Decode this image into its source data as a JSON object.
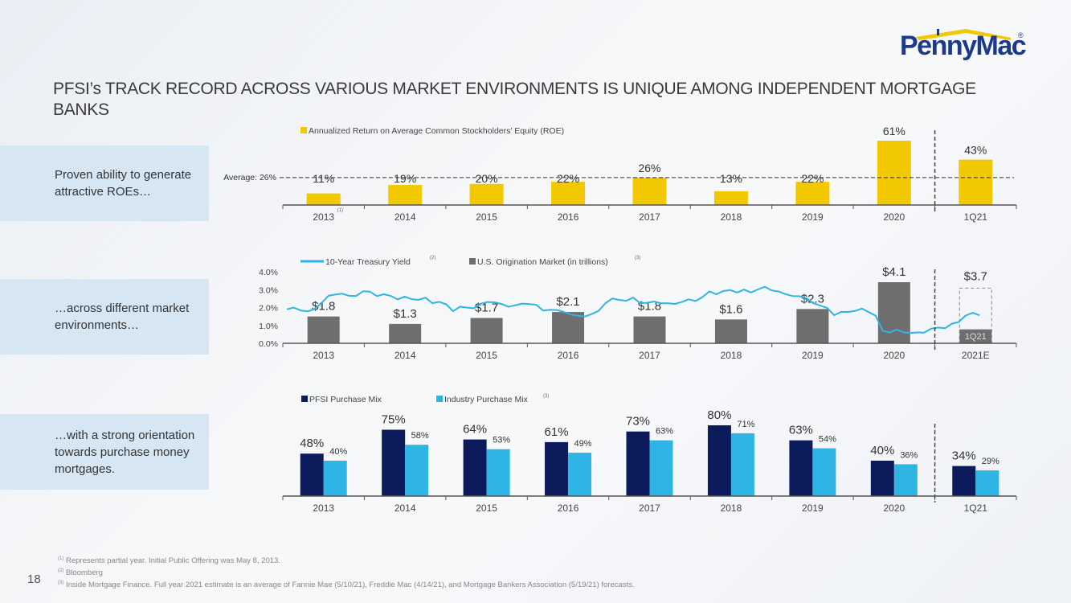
{
  "brand": {
    "name": "PennyMac",
    "registered": "®",
    "primary": "#1d3a8a",
    "accent": "#f2c800"
  },
  "title": "PFSI’s TRACK RECORD ACROSS VARIOUS MARKET ENVIRONMENTS IS UNIQUE AMONG INDEPENDENT MORTGAGE BANKS",
  "panels": [
    "Proven ability to generate attractive ROEs…",
    "…across different market environments…",
    "…with a strong orientation towards purchase money mortgages."
  ],
  "colors": {
    "roe": "#f2c800",
    "origination": "#6e6e6e",
    "treasury": "#2fb4e6",
    "pfsi": "#0b1b5c",
    "industry": "#2fb4e6",
    "axis": "#555555",
    "text": "#333333"
  },
  "chart_data": [
    {
      "type": "bar",
      "name": "roe",
      "legend": "Annualized Return on Average Common Stockholders’ Equity (ROE)",
      "categories": [
        "2013",
        "2014",
        "2015",
        "2016",
        "2017",
        "2018",
        "2019",
        "2020",
        "1Q21"
      ],
      "category_notes": [
        "(1)",
        "",
        "",
        "",
        "",
        "",
        "",
        "",
        ""
      ],
      "values": [
        11,
        19,
        20,
        22,
        26,
        13,
        22,
        61,
        43
      ],
      "labels": [
        "11%",
        "19%",
        "20%",
        "22%",
        "26%",
        "13%",
        "22%",
        "61%",
        "43%"
      ],
      "reference_line": {
        "label": "Average: 26%",
        "value": 26
      },
      "divider_before": "1Q21",
      "ylim": [
        0,
        61
      ],
      "unit": "%"
    },
    {
      "type": "bar",
      "name": "origination",
      "legend": [
        {
          "label": "10-Year Treasury Yield",
          "note": "(2)",
          "kind": "line"
        },
        {
          "label": "U.S. Origination Market (in trillions)",
          "note": "(3)",
          "kind": "bar"
        }
      ],
      "categories": [
        "2013",
        "2014",
        "2015",
        "2016",
        "2017",
        "2018",
        "2019",
        "2020",
        "2021E"
      ],
      "values": [
        1.8,
        1.3,
        1.7,
        2.1,
        1.8,
        1.6,
        2.3,
        4.1,
        3.7
      ],
      "labels": [
        "$1.8",
        "$1.3",
        "$1.7",
        "$2.1",
        "$1.8",
        "$1.6",
        "$2.3",
        "$4.1",
        "$3.7"
      ],
      "partial": {
        "category": "2021E",
        "label": "1Q21",
        "value": 1.2
      },
      "divider_before": "2021E",
      "ylim_bars": [
        0,
        4.1
      ],
      "y2_ticks": [
        "0.0%",
        "1.0%",
        "2.0%",
        "3.0%",
        "4.0%"
      ],
      "y2_range": [
        0,
        4
      ],
      "treasury_yield": {
        "x_start": "2013-01",
        "x_end": "2021-05",
        "monthly": [
          1.9,
          1.95,
          1.9,
          1.75,
          1.9,
          2.3,
          2.6,
          2.75,
          2.8,
          2.6,
          2.7,
          2.9,
          2.85,
          2.7,
          2.7,
          2.65,
          2.5,
          2.55,
          2.5,
          2.45,
          2.5,
          2.3,
          2.3,
          2.15,
          1.85,
          2.0,
          2.0,
          2.0,
          2.15,
          2.35,
          2.3,
          2.15,
          2.1,
          2.1,
          2.2,
          2.25,
          2.1,
          1.85,
          1.9,
          1.8,
          1.8,
          1.6,
          1.5,
          1.55,
          1.6,
          1.8,
          2.3,
          2.45,
          2.45,
          2.4,
          2.5,
          2.3,
          2.25,
          2.3,
          2.3,
          2.2,
          2.2,
          2.35,
          2.4,
          2.4,
          2.6,
          2.85,
          2.8,
          2.9,
          2.95,
          2.9,
          2.95,
          2.85,
          3.05,
          3.1,
          3.0,
          2.9,
          2.7,
          2.7,
          2.6,
          2.5,
          2.3,
          2.05,
          2.0,
          1.6,
          1.7,
          1.8,
          1.8,
          1.9,
          1.8,
          1.5,
          0.7,
          0.65,
          0.7,
          0.65,
          0.6,
          0.55,
          0.65,
          0.8,
          0.85,
          0.9,
          1.05,
          1.2,
          1.6,
          1.65,
          1.6
        ]
      }
    },
    {
      "type": "bar",
      "name": "purchase-mix",
      "categories": [
        "2013",
        "2014",
        "2015",
        "2016",
        "2017",
        "2018",
        "2019",
        "2020",
        "1Q21"
      ],
      "series": [
        {
          "name": "PFSI Purchase Mix",
          "note": "",
          "values": [
            48,
            75,
            64,
            61,
            73,
            80,
            63,
            40,
            34
          ]
        },
        {
          "name": "Industry Purchase Mix",
          "note": "(3)",
          "values": [
            40,
            58,
            53,
            49,
            63,
            71,
            54,
            36,
            29
          ]
        }
      ],
      "divider_before": "1Q21",
      "ylim": [
        0,
        80
      ],
      "unit": "%"
    }
  ],
  "footnotes": [
    {
      "mark": "(1)",
      "text": "Represents partial year. Initial Public Offering was May 8, 2013."
    },
    {
      "mark": "(2)",
      "text": "Bloomberg"
    },
    {
      "mark": "(3)",
      "text": "Inside Mortgage Finance. Full year 2021 estimate is an average of Fannie Mae (5/10/21), Freddie Mac (4/14/21), and Mortgage Bankers Association (5/19/21) forecasts."
    }
  ],
  "page_number": "18"
}
